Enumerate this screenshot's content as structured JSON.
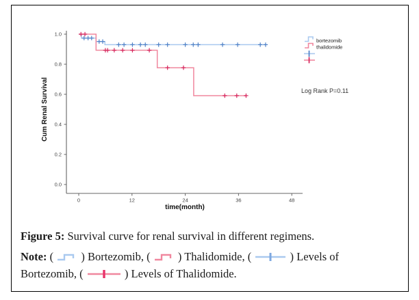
{
  "chart_data": {
    "type": "line",
    "subtype": "kaplan-meier-step",
    "title": "",
    "xlabel": "time(month)",
    "ylabel": "Cum Renal Survival",
    "xlim": [
      0,
      48
    ],
    "x_ticks": [
      0,
      12,
      24,
      36,
      48
    ],
    "ylim": [
      0.0,
      1.0
    ],
    "y_ticks": [
      0.0,
      0.2,
      0.4,
      0.6,
      0.8,
      1.0
    ],
    "grid": false,
    "legend_position": "right-top",
    "annotation": "Log Rank P=0.11",
    "series": [
      {
        "name": "bortezomib",
        "color": "#a9c9ef",
        "censor_color": "#4f81c7",
        "steps": [
          [
            0,
            1.0
          ],
          [
            0.6,
            1.0
          ],
          [
            0.6,
            0.974
          ],
          [
            3.9,
            0.974
          ],
          [
            3.9,
            0.951
          ],
          [
            5.9,
            0.951
          ],
          [
            5.9,
            0.93
          ],
          [
            42.2,
            0.93
          ]
        ],
        "censors": [
          [
            1.2,
            0.974
          ],
          [
            2.1,
            0.974
          ],
          [
            2.9,
            0.974
          ],
          [
            4.6,
            0.951
          ],
          [
            5.4,
            0.951
          ],
          [
            9.0,
            0.93
          ],
          [
            10.2,
            0.93
          ],
          [
            12.1,
            0.93
          ],
          [
            13.9,
            0.93
          ],
          [
            15.0,
            0.93
          ],
          [
            18.0,
            0.93
          ],
          [
            20.0,
            0.93
          ],
          [
            24.0,
            0.93
          ],
          [
            25.8,
            0.93
          ],
          [
            26.9,
            0.93
          ],
          [
            32.4,
            0.93
          ],
          [
            35.8,
            0.93
          ],
          [
            40.9,
            0.93
          ],
          [
            42.1,
            0.93
          ]
        ]
      },
      {
        "name": "thalidomide",
        "color": "#f0879e",
        "censor_color": "#d6255c",
        "steps": [
          [
            0,
            1.0
          ],
          [
            3.9,
            1.0
          ],
          [
            3.9,
            0.893
          ],
          [
            17.7,
            0.893
          ],
          [
            17.7,
            0.777
          ],
          [
            25.9,
            0.777
          ],
          [
            25.9,
            0.591
          ],
          [
            37.8,
            0.591
          ]
        ],
        "censors": [
          [
            0.5,
            1.0
          ],
          [
            1.4,
            1.0
          ],
          [
            6.0,
            0.893
          ],
          [
            6.5,
            0.893
          ],
          [
            8.0,
            0.893
          ],
          [
            9.9,
            0.893
          ],
          [
            12.1,
            0.893
          ],
          [
            15.9,
            0.893
          ],
          [
            20.0,
            0.777
          ],
          [
            23.6,
            0.777
          ],
          [
            32.9,
            0.591
          ],
          [
            35.6,
            0.591
          ],
          [
            37.7,
            0.591
          ]
        ]
      }
    ]
  },
  "legend": {
    "items": [
      {
        "label": "bortezomib",
        "symbol": "blue-step-line"
      },
      {
        "label": "thalidomide",
        "symbol": "red-step-line"
      },
      {
        "label": "",
        "symbol": "blue-censor-plus"
      },
      {
        "label": "",
        "symbol": "red-censor-plus"
      }
    ]
  },
  "caption": {
    "figure": {
      "label": "Figure 5:",
      "text": " Survival curve for renal survival in different regimens."
    },
    "note": {
      "label": "Note:",
      "s1": " ( ",
      "s2": " ) Bortezomib, ( ",
      "s3": " ) Thalidomide, ( ",
      "s4": " ) Levels of",
      "s5": "Bortezomib, ( ",
      "s6": " ) Levels of Thalidomide.",
      "symbols": [
        "bortezomib-step-icon",
        "thalidomide-step-icon",
        "bortezomib-censor-icon",
        "thalidomide-censor-icon"
      ]
    }
  }
}
